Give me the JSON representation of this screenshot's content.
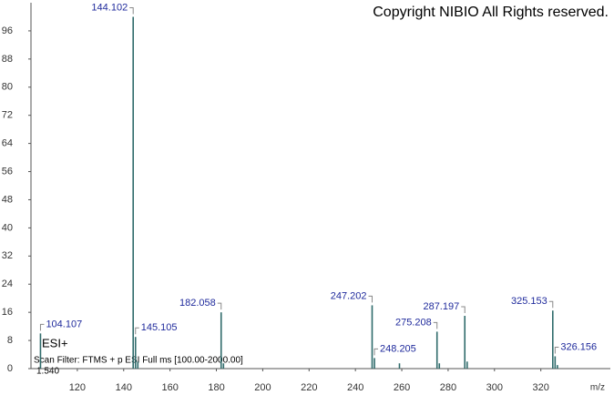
{
  "chart_data": {
    "type": "spectrum",
    "copyright": "Copyright NIBIO All Rights reserved.",
    "ionization": "ESI+",
    "scan_filter": "Scan Filter: FTMS + p ESI Full ms [100.00-2000.00]",
    "retention": "1.540",
    "x_label": "m/z",
    "x": [
      104.107,
      144.102,
      145.105,
      146.108,
      182.058,
      183.061,
      247.202,
      248.205,
      259.0,
      275.208,
      276.21,
      287.197,
      288.2,
      325.153,
      326.156,
      327.16
    ],
    "values": [
      10,
      100,
      9,
      2,
      16,
      1.5,
      18,
      3,
      1.5,
      10.5,
      1.5,
      15,
      2,
      16.5,
      3.5,
      1
    ],
    "value_labels": [
      "104.107",
      "144.102",
      "145.105",
      null,
      "182.058",
      null,
      "247.202",
      "248.205",
      null,
      "275.208",
      null,
      "287.197",
      null,
      "325.153",
      "326.156",
      null
    ],
    "color": "#2f6b6b",
    "label_color": "#1f2a9c",
    "xlim": [
      100,
      350
    ],
    "ylim": [
      0,
      104
    ],
    "xticks": [
      120,
      140,
      160,
      180,
      200,
      220,
      240,
      260,
      280,
      300,
      320
    ],
    "yticks": [
      0,
      8,
      16,
      24,
      32,
      40,
      48,
      56,
      64,
      72,
      80,
      88,
      96
    ]
  }
}
